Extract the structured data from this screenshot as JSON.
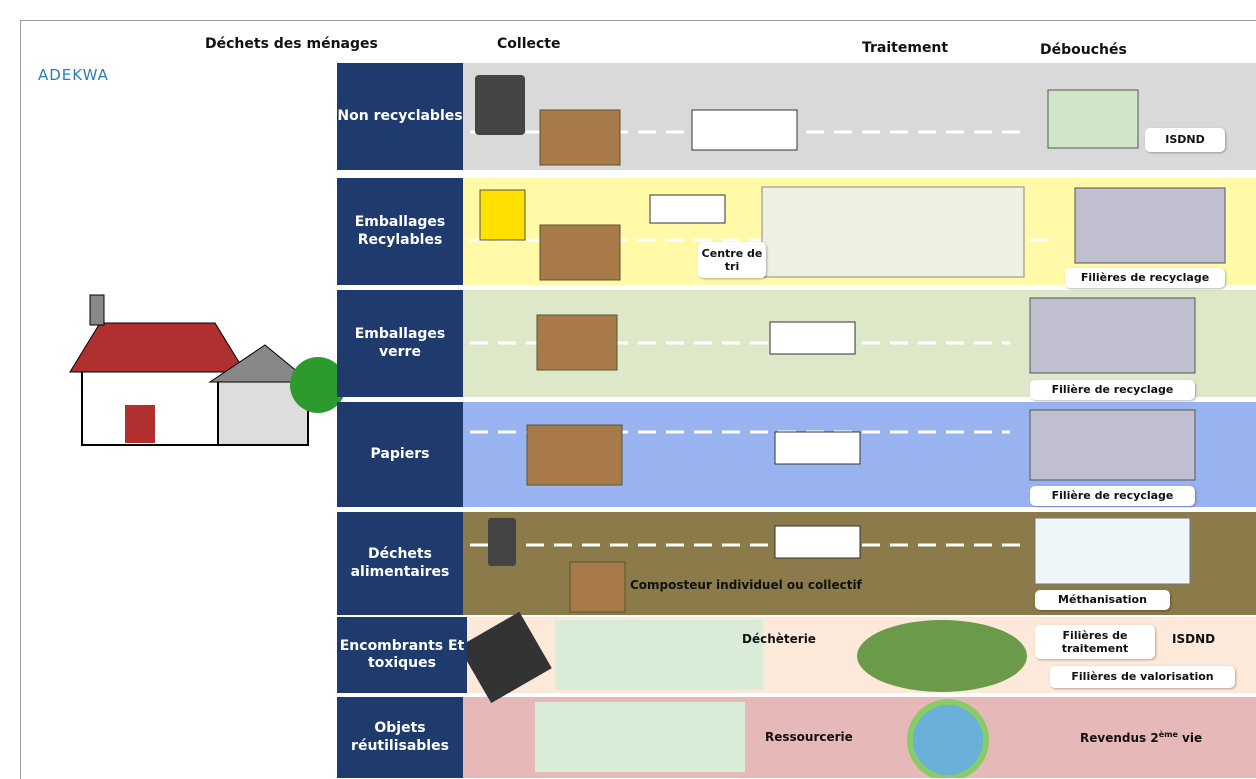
{
  "header": {
    "logo": "ADEKWA",
    "columns": [
      "Déchets des ménages",
      "Collecte",
      "Traitement",
      "Débouchés"
    ]
  },
  "rows": [
    {
      "label": "Non recyclables",
      "items": [
        "ISDND"
      ]
    },
    {
      "label": "Emballages Recylables",
      "items": [
        "Centre de tri",
        "Filières de recyclage"
      ]
    },
    {
      "label": "Emballages verre",
      "items": [
        "Filière de recyclage"
      ]
    },
    {
      "label": "Papiers",
      "items": [
        "Filière de recyclage"
      ]
    },
    {
      "label": "Déchets alimentaires",
      "items": [
        "Composteur individuel ou collectif",
        "Méthanisation"
      ]
    },
    {
      "label": "Encombrants Et toxiques",
      "items": [
        "Déchèterie",
        "Filières de traitement",
        "ISDND",
        "Filières de valorisation"
      ]
    },
    {
      "label": "Objets réutilisables",
      "items": [
        "Ressourcerie"
      ],
      "resale": [
        "Revendus 2",
        "ème",
        " vie"
      ]
    }
  ]
}
